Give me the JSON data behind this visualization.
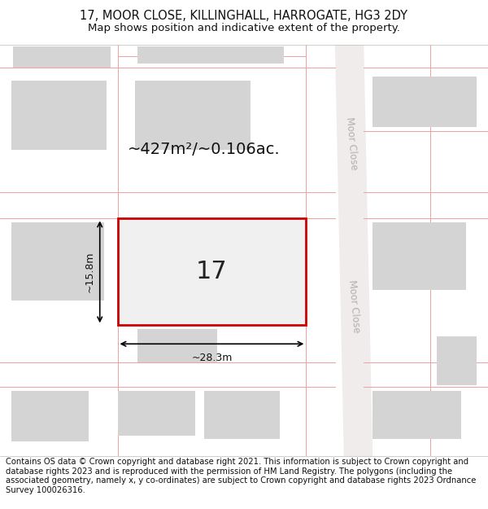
{
  "title_line1": "17, MOOR CLOSE, KILLINGHALL, HARROGATE, HG3 2DY",
  "title_line2": "Map shows position and indicative extent of the property.",
  "footer_text": "Contains OS data © Crown copyright and database right 2021. This information is subject to Crown copyright and database rights 2023 and is reproduced with the permission of HM Land Registry. The polygons (including the associated geometry, namely x, y co-ordinates) are subject to Crown copyright and database rights 2023 Ordnance Survey 100026316.",
  "area_label": "~427m²/~0.106ac.",
  "width_label": "~28.3m",
  "height_label": "~15.8m",
  "plot_number": "17",
  "background_color": "#ffffff",
  "plot_outline_color": "#cc0000",
  "building_fill_color": "#d4d4d4",
  "boundary_color": "#f0a0a0",
  "street_label": "Moor Close",
  "title_fontsize": 10.5,
  "subtitle_fontsize": 9.5,
  "footer_fontsize": 7.2,
  "map_bg": "#fdfafa"
}
